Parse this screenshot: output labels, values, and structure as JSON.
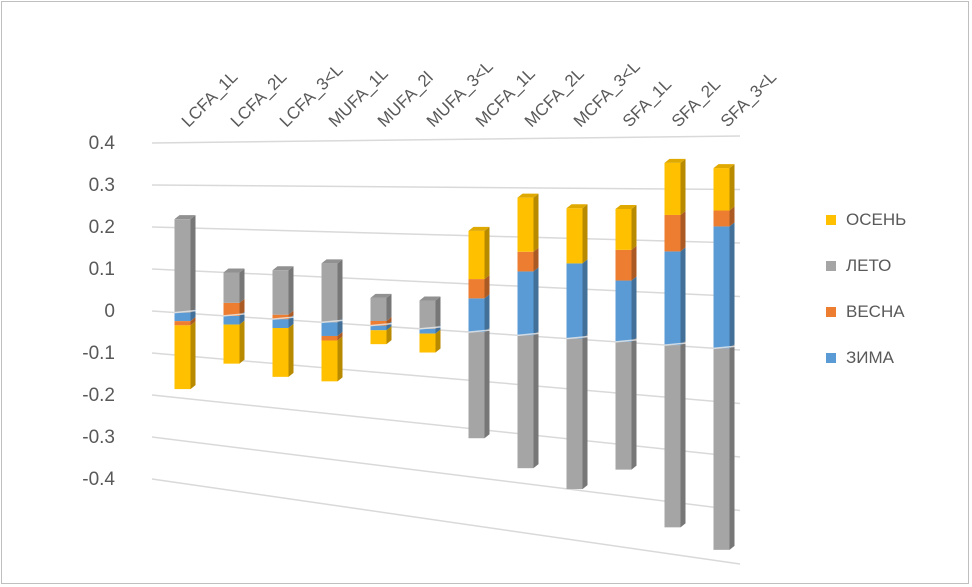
{
  "chart_data": {
    "type": "bar",
    "stacked": true,
    "three_d": true,
    "categories": [
      "LCFA_1L",
      "LCFA_2L",
      "LCFA_3<L",
      "MUFA_1L",
      "MUFA_2l",
      "MUFA_3<L",
      "MCFA_1L",
      "MCFA_2L",
      "MCFA_3<L",
      "SFA_1L",
      "SFA_2L",
      "SFA_3<L"
    ],
    "series": [
      {
        "name": "ЗИМА",
        "color": "#5b9bd5",
        "values": [
          -0.02,
          -0.02,
          -0.02,
          -0.03,
          -0.01,
          -0.01,
          0.07,
          0.13,
          0.15,
          0.12,
          0.18,
          0.23
        ]
      },
      {
        "name": "ВЕСНА",
        "color": "#ed7d31",
        "values": [
          -0.01,
          0.03,
          0.01,
          -0.01,
          0.01,
          0.0,
          0.04,
          0.04,
          0.0,
          0.06,
          0.07,
          0.03
        ]
      },
      {
        "name": "ЛЕТО",
        "color": "#a5a5a5",
        "values": [
          0.22,
          0.07,
          0.1,
          0.13,
          0.05,
          0.06,
          -0.22,
          -0.27,
          -0.3,
          -0.25,
          -0.35,
          -0.38
        ]
      },
      {
        "name": "ОСЕНЬ",
        "color": "#ffc000",
        "values": [
          -0.15,
          -0.09,
          -0.11,
          -0.09,
          -0.03,
          -0.04,
          0.1,
          0.11,
          0.11,
          0.08,
          0.1,
          0.08
        ]
      }
    ],
    "ylim": [
      -0.4,
      0.4
    ],
    "yticks": [
      "0.4",
      "0.3",
      "0.2",
      "0.1",
      "0",
      "-0.1",
      "-0.2",
      "-0.3",
      "-0.4"
    ],
    "legend_placement": "right",
    "grid": true,
    "legend": [
      {
        "name": "ОСЕНЬ",
        "color": "#ffc000"
      },
      {
        "name": "ЛЕТО",
        "color": "#a5a5a5"
      },
      {
        "name": "ВЕСНА",
        "color": "#ed7d31"
      },
      {
        "name": "ЗИМА",
        "color": "#5b9bd5"
      }
    ]
  }
}
